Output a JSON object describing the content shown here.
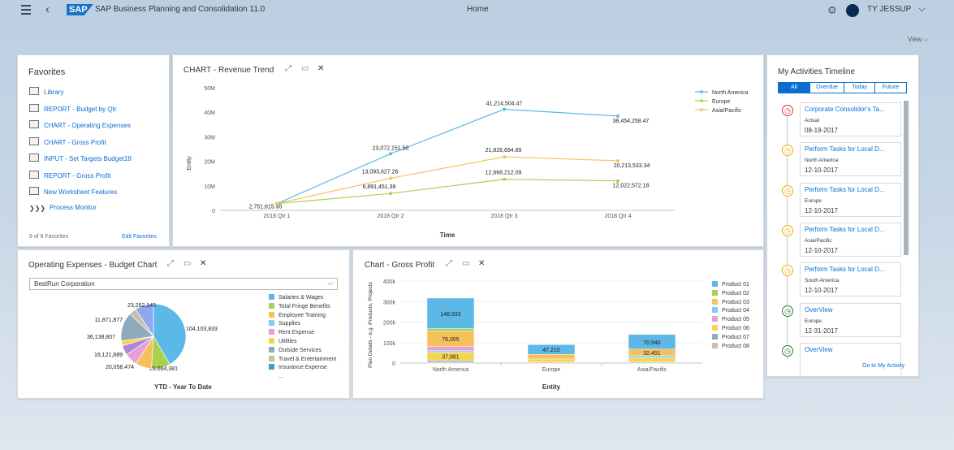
{
  "shell": {
    "logo": "SAP",
    "app_title": "SAP Business Planning and Consolidation 11.0",
    "page_title": "Home",
    "user_name": "TY JESSUP",
    "view_label": "View ⌵"
  },
  "favorites": {
    "title": "Favorites",
    "items": [
      {
        "label": "Library",
        "icon": "folder-icon"
      },
      {
        "label": "REPORT - Budget by Qtr",
        "icon": "report-icon"
      },
      {
        "label": "CHART - Operating Expenses",
        "icon": "report-icon"
      },
      {
        "label": "CHART - Gross Profit",
        "icon": "report-icon"
      },
      {
        "label": "INPUT - Set Targets Budget18",
        "icon": "report-icon"
      },
      {
        "label": "REPORT - Gross Profit",
        "icon": "report-icon"
      },
      {
        "label": "New Worksheet Features",
        "icon": "report-icon"
      },
      {
        "label": "Process Monitor",
        "icon": "process-icon"
      }
    ],
    "count_text": "8 of 8 Favorites",
    "edit_label": "Edit Favorites"
  },
  "chart_data": [
    {
      "type": "line",
      "title": "CHART - Revenue Trend",
      "xlabel": "Time",
      "ylabel": "Entity",
      "categories": [
        "2018 Qtr 1",
        "2018 Qtr 2",
        "2018 Qtr 3",
        "2018 Qtr 4"
      ],
      "yticks": [
        "50M",
        "40M",
        "30M",
        "20M",
        "10M",
        "0"
      ],
      "ylim": [
        0,
        50000000
      ],
      "series": [
        {
          "name": "North America",
          "color": "#5cb8e6",
          "values": [
            2751615.95,
            23072151.5,
            41214504.47,
            38454258.47
          ],
          "labels": [
            "2,751,615.95",
            "23,072,151.50",
            "41,214,504.47",
            "38,454,258.47"
          ]
        },
        {
          "name": "Europe",
          "color": "#a8d14f",
          "values": [
            2751615.95,
            6891451.38,
            12668212.09,
            12022572.18
          ],
          "labels": [
            "",
            "6,891,451.38",
            "12,668,212.09",
            "12,022,572.18"
          ]
        },
        {
          "name": "Asia/Pacific",
          "color": "#f6c15a",
          "values": [
            2751615.95,
            13093627.26,
            21826694.89,
            20213533.34
          ],
          "labels": [
            "",
            "13,093,627.26",
            "21,826,694.89",
            "20,213,533.34"
          ]
        }
      ],
      "legend": "top-right"
    },
    {
      "type": "pie",
      "title": "Operating Expenses - Budget Chart",
      "entity": "BestRun Corporation",
      "footer": "YTD - Year To Date",
      "slices": [
        {
          "name": "Salaries & Wages",
          "value": 104103833,
          "label": "104,103,833",
          "color": "#5cb8e6"
        },
        {
          "name": "Total Fringe Benefits",
          "value": 23664381,
          "label": "23,664,381",
          "color": "#a8d14f"
        },
        {
          "name": "Employee Training",
          "value": 20058474,
          "label": "20,058,474",
          "color": "#f6c15a"
        },
        {
          "name": "Supplies",
          "value": 16121889,
          "label": "16,121,889",
          "color": "#e79fd6"
        },
        {
          "name": "Rent Expense",
          "value": 11871877,
          "label": "11,871,877",
          "color": "#b084d6"
        },
        {
          "name": "Utilities",
          "value": 6200000,
          "label": "",
          "color": "#f8d34e"
        },
        {
          "name": "Outside Services",
          "value": 36138807,
          "label": "36,138,807",
          "color": "#8faabb"
        },
        {
          "name": "Travel & Entertainment",
          "value": 9000000,
          "label": "",
          "color": "#cbbfa8"
        },
        {
          "name": "Insurance Expense",
          "value": 23262145,
          "label": "23,262,145",
          "color": "#8ea9f0"
        }
      ],
      "legend_items": [
        "Salaries & Wages",
        "Total Fringe Benefits",
        "Employee Training",
        "Supplies",
        "Rent Expense",
        "Utilities",
        "Outside Services",
        "Travel & Entertainment",
        "Insurance Expense",
        "..."
      ],
      "legend_colors": [
        "#5cb8e6",
        "#a8d14f",
        "#f6c15a",
        "#7ad0f0",
        "#e79fd6",
        "#f8d34e",
        "#8faabb",
        "#cbbfa8",
        "#3aa0c8",
        ""
      ]
    },
    {
      "type": "bar",
      "stacked": true,
      "title": "Chart - Gross Profit",
      "xlabel": "Entity",
      "ylabel": "Plan Details - e.g. Products, Projects",
      "categories": [
        "North America",
        "Europe",
        "Asia/Pacific"
      ],
      "yticks": [
        "400k",
        "300k",
        "200k",
        "100k",
        "0"
      ],
      "ylim": [
        0,
        400000
      ],
      "legend": [
        "Product 01",
        "Product 02",
        "Product 03",
        "Product 04",
        "Product 05",
        "Product 06",
        "Product 07",
        "Product 08"
      ],
      "colors": [
        "#5cb8e6",
        "#a8d14f",
        "#f6c15a",
        "#7ad0f0",
        "#e79fd6",
        "#f8d34e",
        "#8faabb",
        "#cbbfa8"
      ],
      "stacks": [
        {
          "category": "North America",
          "segments": [
            {
              "product": "Product 08",
              "value": 7000
            },
            {
              "product": "Product 07",
              "value": 7000
            },
            {
              "product": "Product 06",
              "value": 37981,
              "label": "37,981"
            },
            {
              "product": "Product 04",
              "value": 8000
            },
            {
              "product": "Product 05",
              "value": 20000
            },
            {
              "product": "Product 03",
              "value": 76005,
              "label": "76,005"
            },
            {
              "product": "Product 02",
              "value": 12000
            },
            {
              "product": "Product 01",
              "value": 148933,
              "label": "148,933"
            }
          ]
        },
        {
          "category": "Europe",
          "segments": [
            {
              "product": "Product 08",
              "value": 6000
            },
            {
              "product": "Product 06",
              "value": 14000
            },
            {
              "product": "Product 03",
              "value": 23000
            },
            {
              "product": "Product 01",
              "value": 47210,
              "label": "47,210"
            }
          ]
        },
        {
          "category": "Asia/Pacific",
          "segments": [
            {
              "product": "Product 08",
              "value": 6000
            },
            {
              "product": "Product 06",
              "value": 20000
            },
            {
              "product": "Product 04",
              "value": 10000
            },
            {
              "product": "Product 03",
              "value": 32451,
              "label": "32,451"
            },
            {
              "product": "Product 01",
              "value": 70946,
              "label": "70,946"
            }
          ]
        }
      ]
    }
  ],
  "timeline": {
    "title": "My Activities Timeline",
    "filters": [
      "All",
      "Overdue",
      "Today",
      "Future"
    ],
    "items": [
      {
        "title": "Corporate Consolidor's Ta...",
        "sub": "Actual",
        "date": "08-19-2017",
        "icon": "overdue-clock-icon"
      },
      {
        "title": "Perform Tasks for Local D...",
        "sub": "North America",
        "date": "12-10-2017",
        "icon": "clock-icon"
      },
      {
        "title": "Perform Tasks for Local D...",
        "sub": "Europe",
        "date": "12-10-2017",
        "icon": "clock-icon"
      },
      {
        "title": "Perform Tasks for Local D...",
        "sub": "Asia/Pacific",
        "date": "12-10-2017",
        "icon": "clock-icon"
      },
      {
        "title": "Perform Tasks for Local D...",
        "sub": "South America",
        "date": "12-10-2017",
        "icon": "clock-icon"
      },
      {
        "title": "OverView",
        "sub": "Europe",
        "date": "12-31-2017",
        "icon": "done-clock-icon"
      },
      {
        "title": "OverView",
        "sub": "",
        "date": "",
        "icon": "done-clock-icon"
      }
    ],
    "goto_label": "Go to My Activity"
  }
}
